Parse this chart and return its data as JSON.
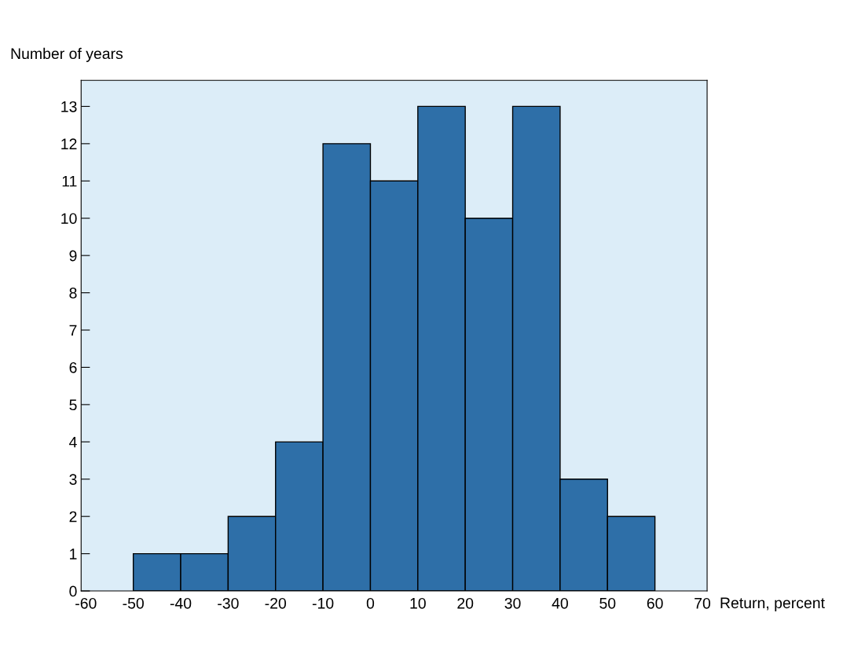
{
  "chart_data": {
    "type": "histogram",
    "xlabel": "Return, percent",
    "ylabel": "Number of years",
    "bins": [
      -50,
      -40,
      -30,
      -20,
      -10,
      0,
      10,
      20,
      30,
      40,
      50,
      60
    ],
    "values": [
      1,
      1,
      2,
      4,
      12,
      11,
      13,
      10,
      13,
      3,
      2
    ],
    "color": "#2e6fa8",
    "xlim": [
      -61,
      71
    ],
    "xticks": [
      -60,
      -50,
      -40,
      -30,
      -20,
      -10,
      0,
      10,
      20,
      30,
      40,
      50,
      60,
      70
    ],
    "ylim": [
      0,
      13.7
    ],
    "yticks": [
      0,
      1,
      2,
      3,
      4,
      5,
      6,
      7,
      8,
      9,
      10,
      11,
      12,
      13
    ],
    "grid": false,
    "legend": false
  }
}
